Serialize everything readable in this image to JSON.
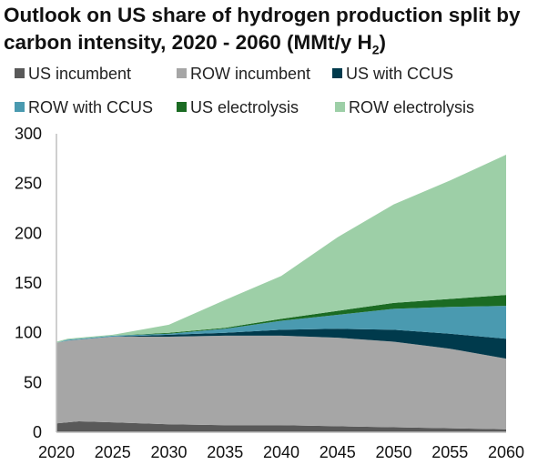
{
  "chart_data": {
    "type": "area",
    "stacked": true,
    "title_main": "Outlook on US share of hydrogen production split by carbon intensity, 2020 - 2060 (MMt/y H",
    "title_sub": "2",
    "title_end": ")",
    "xlabel": "",
    "ylabel": "",
    "xlim": [
      2020,
      2060
    ],
    "ylim": [
      0,
      300
    ],
    "x_ticks": [
      "2020",
      "2025",
      "2030",
      "2035",
      "2040",
      "2045",
      "2050",
      "2055",
      "2060"
    ],
    "y_ticks": [
      "0",
      "50",
      "100",
      "150",
      "200",
      "250",
      "300"
    ],
    "grid": false,
    "legend_position": "top",
    "x": [
      2020,
      2021,
      2022,
      2025,
      2030,
      2035,
      2040,
      2045,
      2050,
      2055,
      2060
    ],
    "series": [
      {
        "name": "US incumbent",
        "color": "#595959",
        "values": [
          9,
          10,
          11,
          10,
          8,
          7,
          7,
          6,
          5,
          4,
          3
        ]
      },
      {
        "name": "ROW incumbent",
        "color": "#a6a6a6",
        "values": [
          81,
          82,
          82,
          86,
          88,
          90,
          90,
          89,
          86,
          80,
          71
        ]
      },
      {
        "name": "US with CCUS",
        "color": "#003a4c",
        "values": [
          0,
          0,
          0,
          0,
          2,
          3,
          6,
          9,
          12,
          15,
          20
        ]
      },
      {
        "name": "ROW with CCUS",
        "color": "#4a9ab0",
        "values": [
          0,
          1,
          1,
          1,
          1,
          4,
          9,
          14,
          21,
          27,
          33
        ]
      },
      {
        "name": "US electrolysis",
        "color": "#1b6b23",
        "values": [
          0,
          0,
          0,
          0,
          1,
          1,
          2,
          4,
          6,
          8,
          11
        ]
      },
      {
        "name": "ROW electrolysis",
        "color": "#9dcfa7",
        "values": [
          1,
          1,
          1,
          1,
          8,
          28,
          43,
          74,
          99,
          119,
          141
        ]
      }
    ]
  }
}
